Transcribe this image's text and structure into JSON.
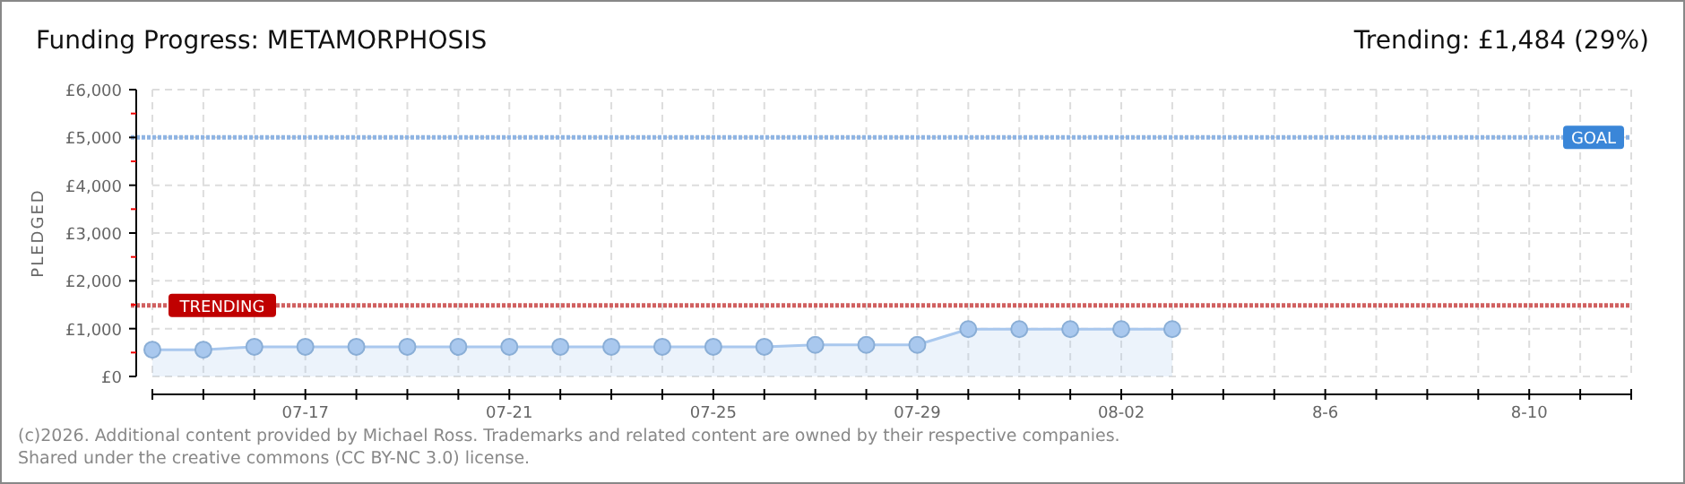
{
  "chart_data": {
    "type": "area",
    "title": "Funding Progress: METAMORPHOSIS",
    "subtitle": "Trending: £1,484 (29%)",
    "ylabel": "PLEDGED",
    "x": [
      "--07-14",
      "--07-15",
      "--07-16",
      "--07-17",
      "--07-18",
      "--07-19",
      "--07-20",
      "--07-21",
      "--07-22",
      "--07-23",
      "--07-24",
      "--07-25",
      "--07-26",
      "--07-27",
      "--07-28",
      "--07-29",
      "--07-30",
      "--07-31",
      "--08-01",
      "--08-02",
      "--08-03"
    ],
    "series": [
      {
        "color": "#a9c8ee",
        "values": [
          560,
          560,
          620,
          620,
          620,
          620,
          620,
          620,
          620,
          620,
          620,
          620,
          620,
          660,
          660,
          660,
          990,
          990,
          990,
          990,
          990
        ]
      }
    ],
    "xlim": [
      "--07-14",
      "--08-12"
    ],
    "xticks": [
      {
        "value": "--07-14",
        "label": null
      },
      {
        "value": "--07-15",
        "label": null
      },
      {
        "value": "--07-16",
        "label": null
      },
      {
        "value": "--07-17",
        "label": "07-17"
      },
      {
        "value": "--07-18",
        "label": null
      },
      {
        "value": "--07-19",
        "label": null
      },
      {
        "value": "--07-20",
        "label": null
      },
      {
        "value": "--07-21",
        "label": "07-21"
      },
      {
        "value": "--07-22",
        "label": null
      },
      {
        "value": "--07-23",
        "label": null
      },
      {
        "value": "--07-24",
        "label": null
      },
      {
        "value": "--07-25",
        "label": "07-25"
      },
      {
        "value": "--07-26",
        "label": null
      },
      {
        "value": "--07-27",
        "label": null
      },
      {
        "value": "--07-28",
        "label": null
      },
      {
        "value": "--07-29",
        "label": "07-29"
      },
      {
        "value": "--07-30",
        "label": null
      },
      {
        "value": "--07-31",
        "label": null
      },
      {
        "value": "--08-01",
        "label": null
      },
      {
        "value": "--08-02",
        "label": "08-02"
      },
      {
        "value": "--08-03",
        "label": null
      },
      {
        "value": "--08-04",
        "label": null
      },
      {
        "value": "--08-05",
        "label": null
      },
      {
        "value": "--08-06",
        "label": "8-6"
      },
      {
        "value": "--08-07",
        "label": null
      },
      {
        "value": "--08-08",
        "label": null
      },
      {
        "value": "--08-09",
        "label": null
      },
      {
        "value": "--08-10",
        "label": "8-10"
      },
      {
        "value": "--08-11",
        "label": null
      },
      {
        "value": "--08-12",
        "label": null
      }
    ],
    "ylim": [
      0,
      6000
    ],
    "yticks": [
      {
        "value": 0,
        "label": "£0"
      },
      {
        "value": 500,
        "label": null
      },
      {
        "value": 1000,
        "label": "£1,000"
      },
      {
        "value": 1500,
        "label": null
      },
      {
        "value": 2000,
        "label": "£2,000"
      },
      {
        "value": 2500,
        "label": null
      },
      {
        "value": 3000,
        "label": "£3,000"
      },
      {
        "value": 3500,
        "label": null
      },
      {
        "value": 4000,
        "label": "£4,000"
      },
      {
        "value": 4500,
        "label": null
      },
      {
        "value": 5000,
        "label": "£5,000"
      },
      {
        "value": 5500,
        "label": null
      },
      {
        "value": 6000,
        "label": "£6,000"
      }
    ],
    "ref_lines": [
      {
        "axis": "y",
        "value": 5000,
        "label": "GOAL",
        "color": "#8fb4e3",
        "line_style": "dotted"
      },
      {
        "axis": "y",
        "value": 1484,
        "label": "TRENDING",
        "color": "#d06060",
        "line_style": "dotted"
      }
    ],
    "grid": true,
    "marker": "circle",
    "annotations": [
      "(c)2026. Additional content provided by Michael Ross. Trademarks and related content are owned by their respective companies.",
      "Shared under the creative commons (CC BY-NC 3.0) license."
    ]
  }
}
